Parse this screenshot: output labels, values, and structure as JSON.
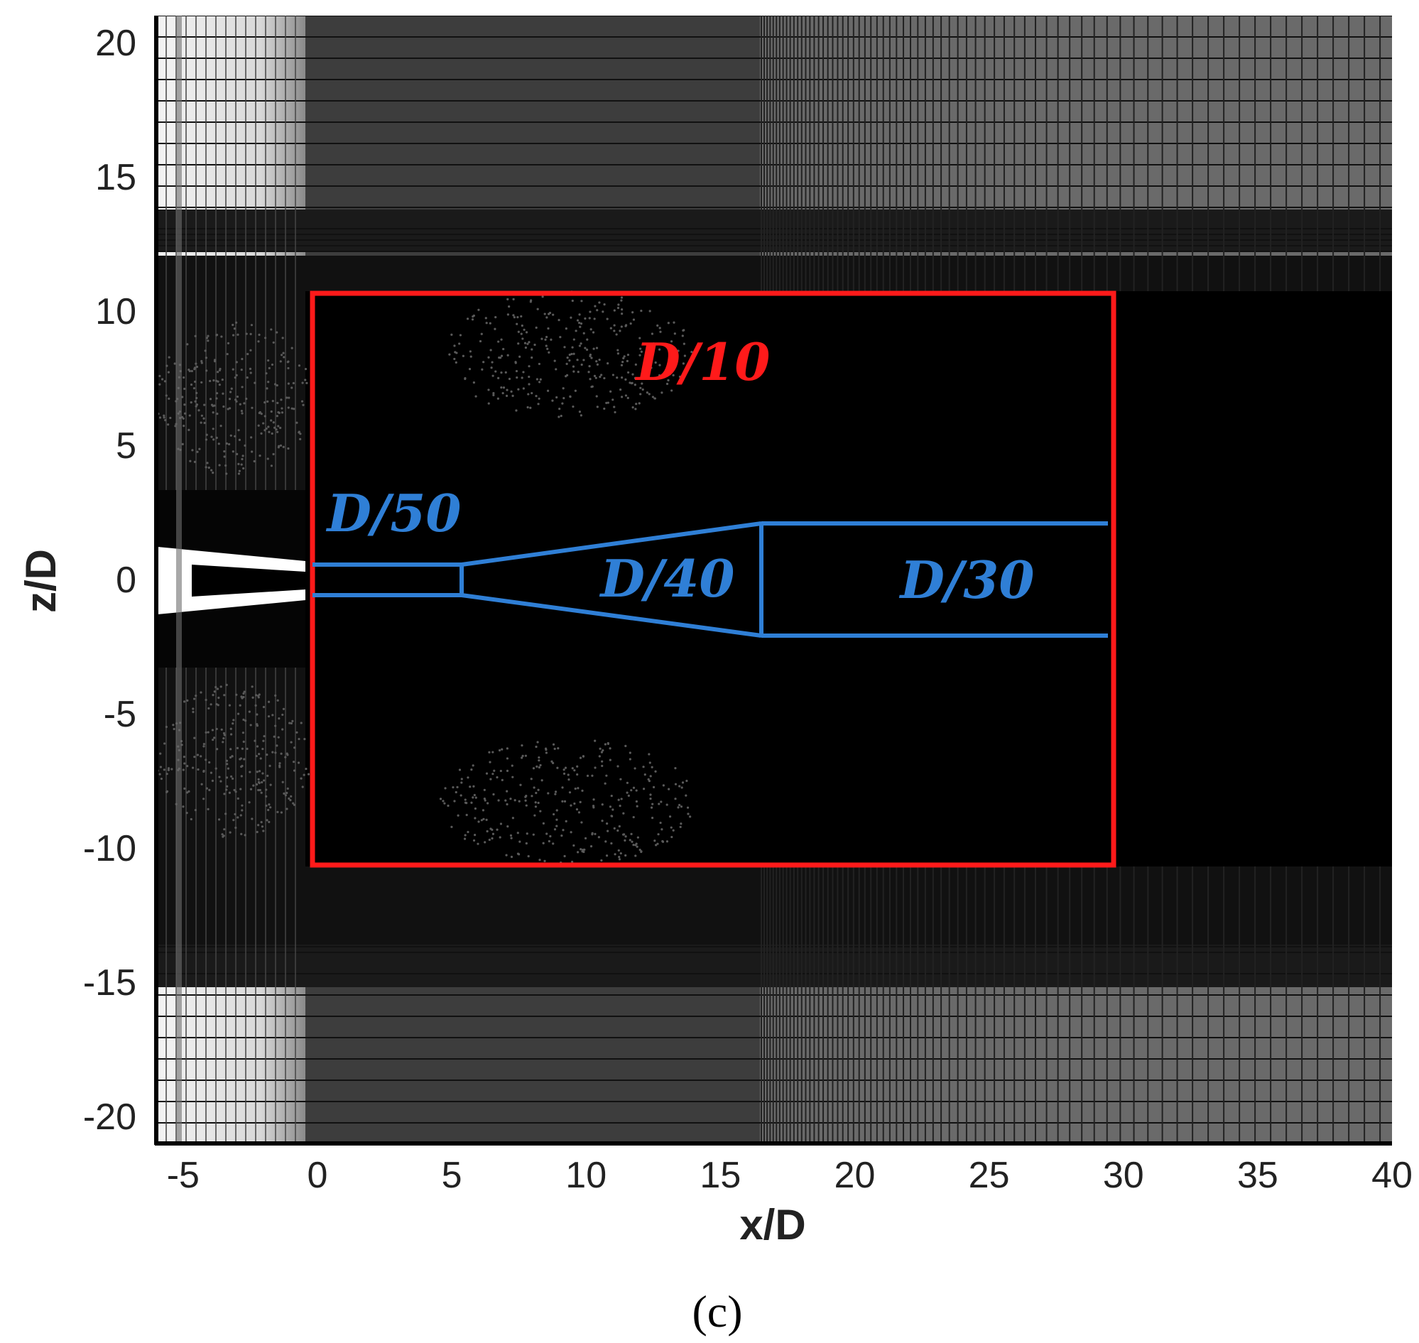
{
  "axes": {
    "x_title": "x/D",
    "z_title": "z/D",
    "x_ticks": [
      "-5",
      "0",
      "5",
      "10",
      "15",
      "20",
      "25",
      "30",
      "35",
      "40"
    ],
    "z_ticks": [
      "20",
      "15",
      "10",
      "5",
      "0",
      "-5",
      "-10",
      "-15",
      "-20"
    ],
    "x_range": [
      -6,
      40
    ],
    "z_range": [
      -21,
      21
    ]
  },
  "regions": {
    "outer_refinement": {
      "label": "D/10",
      "color": "#ff1a1a"
    },
    "near_field": {
      "label": "D/50",
      "color": "#2f7fd6"
    },
    "transition": {
      "label": "D/40",
      "color": "#2f7fd6"
    },
    "wake": {
      "label": "D/30",
      "color": "#2f7fd6"
    }
  },
  "panel_label": "(c)"
}
